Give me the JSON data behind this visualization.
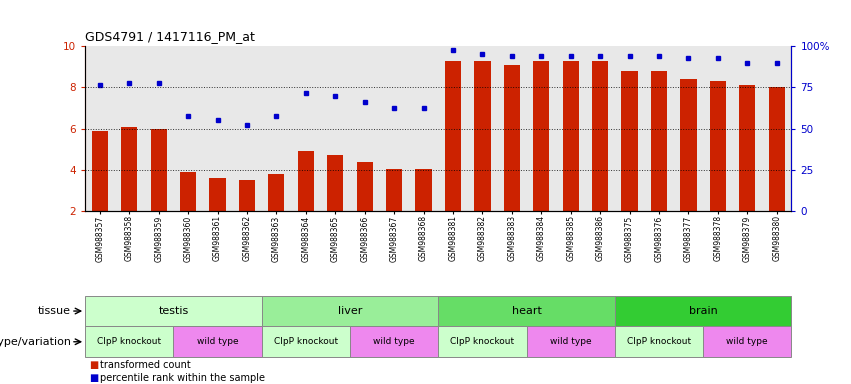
{
  "title": "GDS4791 / 1417116_PM_at",
  "samples": [
    "GSM988357",
    "GSM988358",
    "GSM988359",
    "GSM988360",
    "GSM988361",
    "GSM988362",
    "GSM988363",
    "GSM988364",
    "GSM988365",
    "GSM988366",
    "GSM988367",
    "GSM988368",
    "GSM988381",
    "GSM988382",
    "GSM988383",
    "GSM988384",
    "GSM988385",
    "GSM988386",
    "GSM988375",
    "GSM988376",
    "GSM988377",
    "GSM988378",
    "GSM988379",
    "GSM988380"
  ],
  "bar_values": [
    5.9,
    6.1,
    6.0,
    3.9,
    3.6,
    3.5,
    3.8,
    4.9,
    4.7,
    4.4,
    4.05,
    4.05,
    9.3,
    9.3,
    9.1,
    9.3,
    9.3,
    9.3,
    8.8,
    8.8,
    8.4,
    8.3,
    8.1,
    8.0
  ],
  "dot_values": [
    8.1,
    8.2,
    8.2,
    6.6,
    6.4,
    6.2,
    6.6,
    7.75,
    7.6,
    7.3,
    7.0,
    7.0,
    9.8,
    9.6,
    9.5,
    9.5,
    9.5,
    9.5,
    9.5,
    9.5,
    9.4,
    9.4,
    9.2,
    9.2
  ],
  "bar_color": "#cc2200",
  "dot_color": "#0000cc",
  "ylim_left": [
    2,
    10
  ],
  "ylim_right": [
    0,
    100
  ],
  "yticks_left": [
    2,
    4,
    6,
    8,
    10
  ],
  "yticks_right": [
    0,
    25,
    50,
    75,
    100
  ],
  "ytick_labels_left": [
    "2",
    "4",
    "6",
    "8",
    "10"
  ],
  "ytick_labels_right": [
    "0",
    "25",
    "50",
    "75",
    "100%"
  ],
  "tissue_groups": [
    {
      "label": "testis",
      "start": 0,
      "end": 6,
      "color": "#ccffcc"
    },
    {
      "label": "liver",
      "start": 6,
      "end": 12,
      "color": "#99ee99"
    },
    {
      "label": "heart",
      "start": 12,
      "end": 18,
      "color": "#66dd66"
    },
    {
      "label": "brain",
      "start": 18,
      "end": 24,
      "color": "#33cc33"
    }
  ],
  "genotype_groups": [
    {
      "label": "ClpP knockout",
      "start": 0,
      "end": 3,
      "color": "#ccffcc"
    },
    {
      "label": "wild type",
      "start": 3,
      "end": 6,
      "color": "#ee88ee"
    },
    {
      "label": "ClpP knockout",
      "start": 6,
      "end": 9,
      "color": "#ccffcc"
    },
    {
      "label": "wild type",
      "start": 9,
      "end": 12,
      "color": "#ee88ee"
    },
    {
      "label": "ClpP knockout",
      "start": 12,
      "end": 15,
      "color": "#ccffcc"
    },
    {
      "label": "wild type",
      "start": 15,
      "end": 18,
      "color": "#ee88ee"
    },
    {
      "label": "ClpP knockout",
      "start": 18,
      "end": 21,
      "color": "#ccffcc"
    },
    {
      "label": "wild type",
      "start": 21,
      "end": 24,
      "color": "#ee88ee"
    }
  ],
  "legend_items": [
    {
      "label": "transformed count",
      "color": "#cc2200"
    },
    {
      "label": "percentile rank within the sample",
      "color": "#0000cc"
    }
  ],
  "tissue_label": "tissue",
  "genotype_label": "genotype/variation",
  "background_color": "#ffffff",
  "plot_bg_color": "#e8e8e8",
  "grid_yticks": [
    4,
    6,
    8
  ]
}
